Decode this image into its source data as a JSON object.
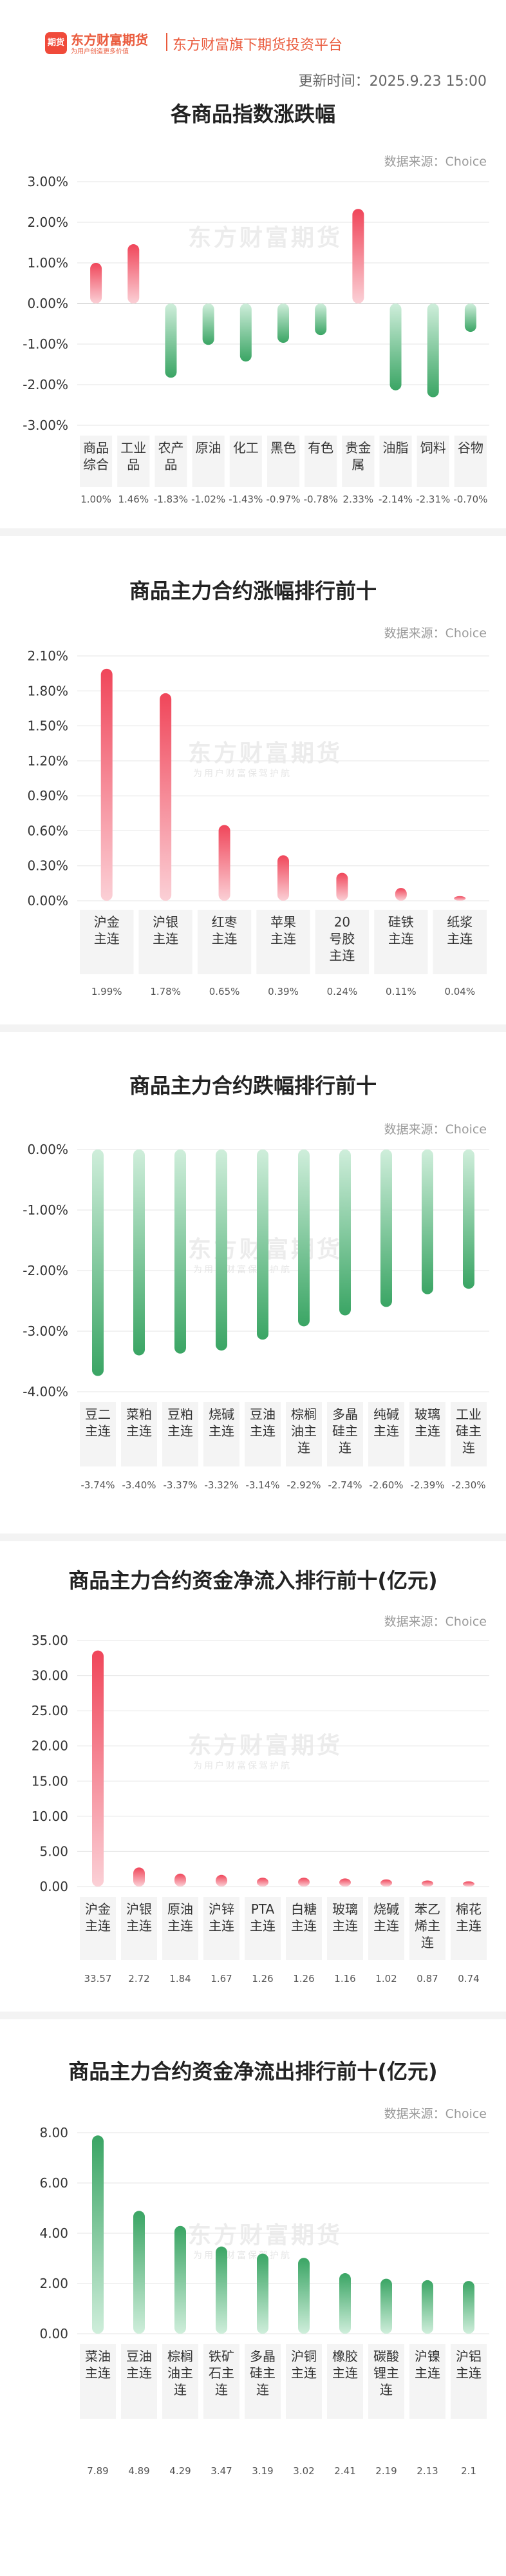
{
  "header": {
    "logo_mark": "期货",
    "logo_text": "东方财富期货",
    "logo_slogan": "为用户创造更多价值",
    "platform": "东方财富旗下期货投资平台",
    "update_time": "更新时间：2025.9.23 15:00"
  },
  "watermark": {
    "text": "东方财富期货",
    "sub": "为用户财富保驾护航"
  },
  "colors": {
    "up": "#f0465a",
    "up_light": "#fbd0d6",
    "down": "#3aa564",
    "down_light": "#cfeedb",
    "panel": "#f4f4f4",
    "grid": "#e6e6e6"
  },
  "charts": [
    {
      "title": "各商品指数涨跌幅",
      "source": "数据来源：Choice",
      "chart_data": {
        "type": "bar",
        "categories": [
          "商品综合",
          "工业品",
          "农产品",
          "原油",
          "化工",
          "黑色",
          "有色",
          "贵金属",
          "油脂",
          "饲料",
          "谷物"
        ],
        "values": [
          1.0,
          1.46,
          -1.83,
          -1.02,
          -1.43,
          -0.97,
          -0.78,
          2.33,
          -2.14,
          -2.31,
          -0.7
        ],
        "value_labels": [
          "1.00%",
          "1.46%",
          "-1.83%",
          "-1.02%",
          "-1.43%",
          "-0.97%",
          "-0.78%",
          "2.33%",
          "-2.14%",
          "-2.31%",
          "-0.70%"
        ],
        "yticks": [
          "3.00%",
          "2.00%",
          "1.00%",
          "0.00%",
          "-1.00%",
          "-2.00%",
          "-3.00%"
        ],
        "ylim": [
          -3,
          3
        ],
        "unit": "%"
      }
    },
    {
      "title": "商品主力合约涨幅排行前十",
      "source": "数据来源：Choice",
      "chart_data": {
        "type": "bar",
        "categories": [
          "沪金主连",
          "沪银主连",
          "红枣主连",
          "苹果主连",
          "20号胶主连",
          "硅铁主连",
          "纸浆主连"
        ],
        "values": [
          1.99,
          1.78,
          0.65,
          0.39,
          0.24,
          0.11,
          0.04
        ],
        "value_labels": [
          "1.99%",
          "1.78%",
          "0.65%",
          "0.39%",
          "0.24%",
          "0.11%",
          "0.04%"
        ],
        "yticks": [
          "2.10%",
          "1.80%",
          "1.50%",
          "1.20%",
          "0.90%",
          "0.60%",
          "0.30%",
          "0.00%"
        ],
        "ylim": [
          0,
          2.1
        ],
        "unit": "%"
      }
    },
    {
      "title": "商品主力合约跌幅排行前十",
      "source": "数据来源：Choice",
      "chart_data": {
        "type": "bar",
        "categories": [
          "豆二主连",
          "菜粕主连",
          "豆粕主连",
          "烧碱主连",
          "豆油主连",
          "棕榈油主连",
          "多晶硅主连",
          "纯碱主连",
          "玻璃主连",
          "工业硅主连"
        ],
        "values": [
          -3.74,
          -3.4,
          -3.37,
          -3.32,
          -3.14,
          -2.92,
          -2.74,
          -2.6,
          -2.39,
          -2.3
        ],
        "value_labels": [
          "-3.74%",
          "-3.40%",
          "-3.37%",
          "-3.32%",
          "-3.14%",
          "-2.92%",
          "-2.74%",
          "-2.60%",
          "-2.39%",
          "-2.30%"
        ],
        "yticks": [
          "0.00%",
          "-1.00%",
          "-2.00%",
          "-3.00%",
          "-4.00%"
        ],
        "ylim": [
          -4,
          0
        ],
        "unit": "%"
      }
    },
    {
      "title": "商品主力合约资金净流入排行前十(亿元)",
      "source": "数据来源：Choice",
      "chart_data": {
        "type": "bar",
        "categories": [
          "沪金主连",
          "沪银主连",
          "原油主连",
          "沪锌主连",
          "PTA主连",
          "白糖主连",
          "玻璃主连",
          "烧碱主连",
          "苯乙烯主连",
          "棉花主连"
        ],
        "values": [
          33.57,
          2.72,
          1.84,
          1.67,
          1.26,
          1.26,
          1.16,
          1.02,
          0.87,
          0.74
        ],
        "value_labels": [
          "33.57",
          "2.72",
          "1.84",
          "1.67",
          "1.26",
          "1.26",
          "1.16",
          "1.02",
          "0.87",
          "0.74"
        ],
        "yticks": [
          "35.00",
          "30.00",
          "25.00",
          "20.00",
          "15.00",
          "10.00",
          "5.00",
          "0.00"
        ],
        "ylim": [
          0,
          35
        ],
        "unit": "亿元"
      }
    },
    {
      "title": "商品主力合约资金净流出排行前十(亿元)",
      "source": "数据来源：Choice",
      "chart_data": {
        "type": "bar",
        "categories": [
          "菜油主连",
          "豆油主连",
          "棕榈油主连",
          "铁矿石主连",
          "多晶硅主连",
          "沪铜主连",
          "橡胶主连",
          "碳酸锂主连",
          "沪镍主连",
          "沪铝主连"
        ],
        "values": [
          7.89,
          4.89,
          4.29,
          3.47,
          3.19,
          3.02,
          2.41,
          2.19,
          2.13,
          2.1
        ],
        "value_labels": [
          "7.89",
          "4.89",
          "4.29",
          "3.47",
          "3.19",
          "3.02",
          "2.41",
          "2.19",
          "2.13",
          "2.1"
        ],
        "yticks": [
          "8.00",
          "6.00",
          "4.00",
          "2.00",
          "0.00"
        ],
        "ylim": [
          0,
          8
        ],
        "unit": "亿元"
      }
    }
  ]
}
